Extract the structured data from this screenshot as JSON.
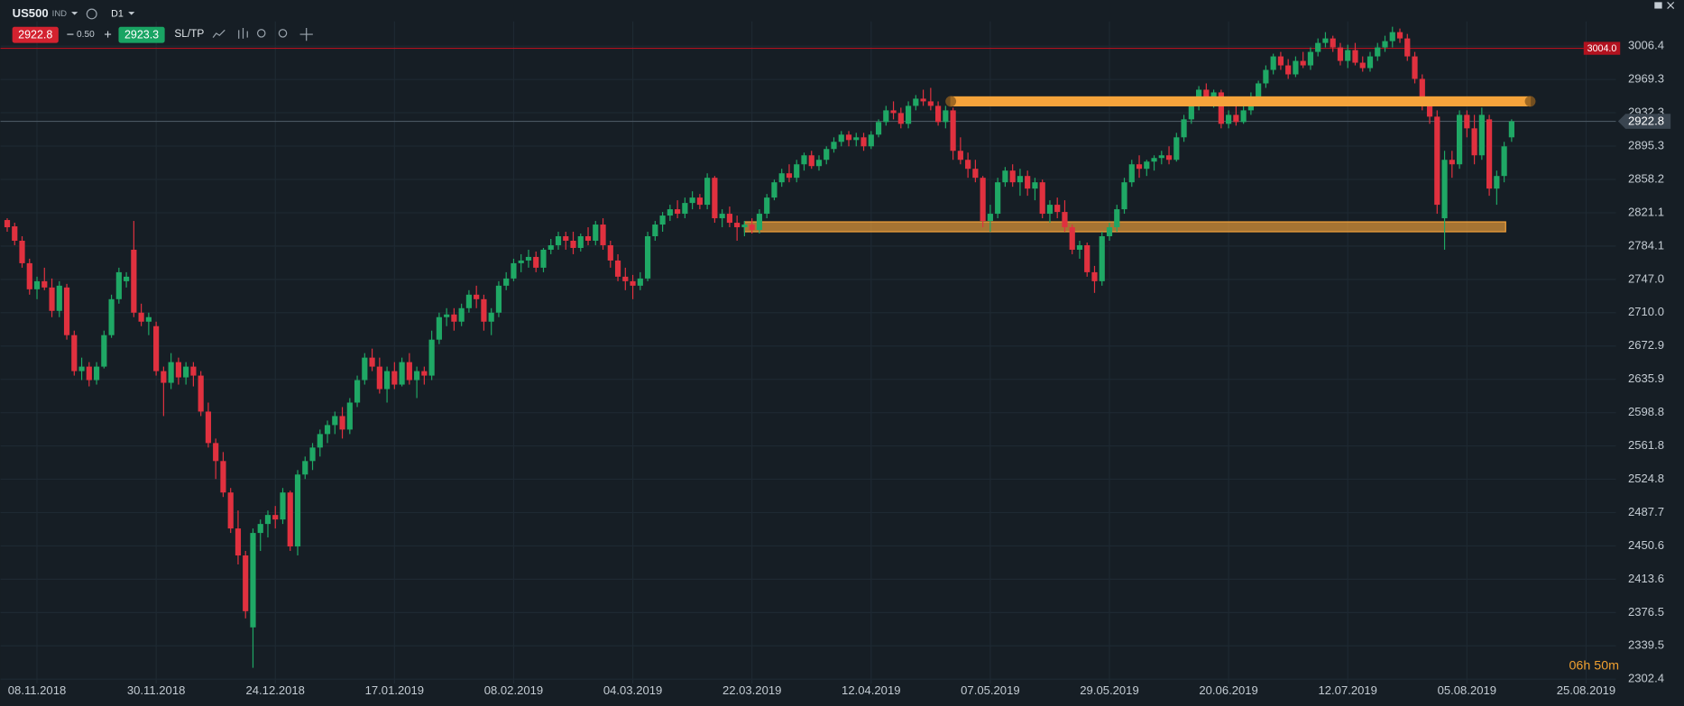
{
  "header": {
    "symbol": "US500",
    "market": "IND",
    "timeframe": "D1",
    "bid": "2922.8",
    "spread": "0.50",
    "ask": "2923.3",
    "sltp": "SL/TP"
  },
  "chart_data": {
    "type": "candlestick",
    "up_color": "#1fa865",
    "down_color": "#e0313f",
    "grid": true,
    "xlim": [
      -0.9,
      216
    ],
    "ylim": [
      2300,
      3010
    ],
    "xticks": [
      {
        "value": 4,
        "label": "08.11.2018"
      },
      {
        "value": 20,
        "label": "30.11.2018"
      },
      {
        "value": 36,
        "label": "24.12.2018"
      },
      {
        "value": 52,
        "label": "17.01.2019"
      },
      {
        "value": 68,
        "label": "08.02.2019"
      },
      {
        "value": 84,
        "label": "04.03.2019"
      },
      {
        "value": 100,
        "label": "22.03.2019"
      },
      {
        "value": 116,
        "label": "12.04.2019"
      },
      {
        "value": 132,
        "label": "07.05.2019"
      },
      {
        "value": 148,
        "label": "29.05.2019"
      },
      {
        "value": 164,
        "label": "20.06.2019"
      },
      {
        "value": 180,
        "label": "12.07.2019"
      },
      {
        "value": 196,
        "label": "05.08.2019"
      },
      {
        "value": 212,
        "label": "25.08.2019"
      }
    ],
    "yticks": [
      3006.4,
      2969.3,
      2932.3,
      2895.3,
      2858.2,
      2821.1,
      2784.1,
      {
        "value": 2747,
        "label": "2747.0"
      },
      {
        "value": 2710,
        "label": "2710.0"
      },
      2672.9,
      2635.9,
      2598.8,
      2561.8,
      2524.8,
      2487.7,
      2450.6,
      2413.6,
      2376.5,
      2339.5,
      2302.4
    ],
    "lines": [
      {
        "value": 3004,
        "label": "3004.0",
        "color": "#b3121f"
      },
      {
        "value": 2922.8,
        "label": "2922.8",
        "color": "#4a5661"
      }
    ],
    "zones": [
      {
        "low": 2940,
        "high": 2950,
        "from": 126.7,
        "to": 204.5,
        "color": "#f5a33b",
        "opacity": 1
      },
      {
        "low": 2800,
        "high": 2811,
        "from": 99,
        "to": 201.2,
        "color": "#f5a33b",
        "opacity": 0.65
      }
    ],
    "timer": "06h 50m",
    "candles": [
      [
        2813,
        2815,
        2800,
        2805
      ],
      [
        2806,
        2810,
        2785,
        2790
      ],
      [
        2790,
        2795,
        2760,
        2765
      ],
      [
        2765,
        2770,
        2730,
        2736
      ],
      [
        2736,
        2750,
        2725,
        2745
      ],
      [
        2745,
        2760,
        2735,
        2738
      ],
      [
        2738,
        2748,
        2705,
        2712
      ],
      [
        2712,
        2745,
        2705,
        2740
      ],
      [
        2738,
        2742,
        2680,
        2685
      ],
      [
        2685,
        2690,
        2640,
        2645
      ],
      [
        2645,
        2660,
        2635,
        2650
      ],
      [
        2650,
        2655,
        2628,
        2635
      ],
      [
        2635,
        2655,
        2630,
        2650
      ],
      [
        2650,
        2690,
        2648,
        2685
      ],
      [
        2685,
        2730,
        2682,
        2725
      ],
      [
        2725,
        2760,
        2720,
        2755
      ],
      [
        2745,
        2755,
        2738,
        2750
      ],
      [
        2780,
        2812,
        2705,
        2710
      ],
      [
        2710,
        2720,
        2695,
        2700
      ],
      [
        2700,
        2710,
        2685,
        2705
      ],
      [
        2695,
        2700,
        2640,
        2645
      ],
      [
        2645,
        2650,
        2595,
        2632
      ],
      [
        2632,
        2665,
        2625,
        2655
      ],
      [
        2655,
        2660,
        2630,
        2638
      ],
      [
        2638,
        2655,
        2630,
        2650
      ],
      [
        2650,
        2655,
        2628,
        2640
      ],
      [
        2640,
        2645,
        2595,
        2600
      ],
      [
        2600,
        2610,
        2560,
        2565
      ],
      [
        2565,
        2570,
        2525,
        2545
      ],
      [
        2545,
        2555,
        2505,
        2510
      ],
      [
        2510,
        2515,
        2465,
        2470
      ],
      [
        2470,
        2490,
        2430,
        2440
      ],
      [
        2440,
        2445,
        2370,
        2378
      ],
      [
        2360,
        2470,
        2315,
        2465
      ],
      [
        2465,
        2480,
        2445,
        2475
      ],
      [
        2475,
        2490,
        2460,
        2485
      ],
      [
        2485,
        2495,
        2470,
        2480
      ],
      [
        2480,
        2515,
        2475,
        2510
      ],
      [
        2510,
        2512,
        2445,
        2450
      ],
      [
        2450,
        2535,
        2440,
        2530
      ],
      [
        2530,
        2550,
        2525,
        2545
      ],
      [
        2545,
        2565,
        2535,
        2560
      ],
      [
        2560,
        2580,
        2550,
        2575
      ],
      [
        2575,
        2590,
        2565,
        2585
      ],
      [
        2585,
        2600,
        2575,
        2595
      ],
      [
        2595,
        2605,
        2570,
        2580
      ],
      [
        2580,
        2615,
        2575,
        2610
      ],
      [
        2610,
        2640,
        2605,
        2635
      ],
      [
        2635,
        2665,
        2630,
        2660
      ],
      [
        2660,
        2670,
        2645,
        2650
      ],
      [
        2650,
        2660,
        2620,
        2625
      ],
      [
        2625,
        2650,
        2610,
        2645
      ],
      [
        2645,
        2655,
        2625,
        2630
      ],
      [
        2630,
        2660,
        2628,
        2655
      ],
      [
        2655,
        2665,
        2630,
        2635
      ],
      [
        2635,
        2650,
        2615,
        2645
      ],
      [
        2645,
        2650,
        2630,
        2640
      ],
      [
        2640,
        2690,
        2635,
        2680
      ],
      [
        2680,
        2710,
        2675,
        2705
      ],
      [
        2705,
        2715,
        2695,
        2708
      ],
      [
        2708,
        2715,
        2690,
        2700
      ],
      [
        2700,
        2720,
        2695,
        2715
      ],
      [
        2715,
        2735,
        2710,
        2730
      ],
      [
        2730,
        2740,
        2715,
        2725
      ],
      [
        2725,
        2730,
        2690,
        2700
      ],
      [
        2700,
        2715,
        2685,
        2710
      ],
      [
        2710,
        2745,
        2705,
        2740
      ],
      [
        2740,
        2755,
        2735,
        2748
      ],
      [
        2748,
        2770,
        2745,
        2765
      ],
      [
        2765,
        2775,
        2755,
        2768
      ],
      [
        2768,
        2780,
        2760,
        2772
      ],
      [
        2772,
        2778,
        2755,
        2760
      ],
      [
        2760,
        2782,
        2755,
        2780
      ],
      [
        2780,
        2792,
        2775,
        2785
      ],
      [
        2785,
        2800,
        2780,
        2795
      ],
      [
        2795,
        2800,
        2780,
        2790
      ],
      [
        2790,
        2800,
        2775,
        2782
      ],
      [
        2782,
        2798,
        2778,
        2795
      ],
      [
        2795,
        2805,
        2785,
        2790
      ],
      [
        2790,
        2812,
        2785,
        2808
      ],
      [
        2808,
        2815,
        2780,
        2785
      ],
      [
        2785,
        2790,
        2760,
        2768
      ],
      [
        2768,
        2775,
        2745,
        2750
      ],
      [
        2750,
        2760,
        2735,
        2745
      ],
      [
        2745,
        2752,
        2725,
        2740
      ],
      [
        2740,
        2755,
        2735,
        2748
      ],
      [
        2748,
        2800,
        2745,
        2795
      ],
      [
        2795,
        2812,
        2790,
        2808
      ],
      [
        2808,
        2822,
        2800,
        2818
      ],
      [
        2818,
        2830,
        2812,
        2825
      ],
      [
        2825,
        2835,
        2815,
        2820
      ],
      [
        2820,
        2838,
        2815,
        2832
      ],
      [
        2832,
        2845,
        2825,
        2838
      ],
      [
        2838,
        2842,
        2825,
        2830
      ],
      [
        2830,
        2865,
        2825,
        2860
      ],
      [
        2860,
        2862,
        2810,
        2815
      ],
      [
        2815,
        2825,
        2805,
        2820
      ],
      [
        2820,
        2828,
        2805,
        2810
      ],
      [
        2810,
        2818,
        2790,
        2805
      ],
      [
        2805,
        2812,
        2795,
        2808
      ],
      [
        2808,
        2815,
        2798,
        2802
      ],
      [
        2802,
        2825,
        2798,
        2820
      ],
      [
        2820,
        2842,
        2815,
        2838
      ],
      [
        2838,
        2858,
        2835,
        2855
      ],
      [
        2855,
        2870,
        2850,
        2865
      ],
      [
        2865,
        2875,
        2855,
        2860
      ],
      [
        2860,
        2880,
        2855,
        2875
      ],
      [
        2875,
        2888,
        2868,
        2885
      ],
      [
        2885,
        2890,
        2870,
        2873
      ],
      [
        2873,
        2885,
        2868,
        2880
      ],
      [
        2880,
        2895,
        2875,
        2892
      ],
      [
        2892,
        2905,
        2888,
        2900
      ],
      [
        2900,
        2912,
        2895,
        2908
      ],
      [
        2908,
        2912,
        2895,
        2902
      ],
      [
        2902,
        2910,
        2895,
        2905
      ],
      [
        2905,
        2910,
        2890,
        2895
      ],
      [
        2895,
        2912,
        2892,
        2908
      ],
      [
        2908,
        2925,
        2905,
        2922
      ],
      [
        2922,
        2940,
        2918,
        2935
      ],
      [
        2935,
        2945,
        2925,
        2932
      ],
      [
        2932,
        2938,
        2915,
        2920
      ],
      [
        2920,
        2945,
        2915,
        2940
      ],
      [
        2940,
        2952,
        2935,
        2948
      ],
      [
        2948,
        2958,
        2940,
        2945
      ],
      [
        2945,
        2960,
        2935,
        2940
      ],
      [
        2940,
        2945,
        2918,
        2922
      ],
      [
        2922,
        2940,
        2915,
        2935
      ],
      [
        2935,
        2938,
        2880,
        2890
      ],
      [
        2890,
        2905,
        2875,
        2880
      ],
      [
        2880,
        2888,
        2860,
        2870
      ],
      [
        2870,
        2880,
        2855,
        2860
      ],
      [
        2860,
        2862,
        2805,
        2812
      ],
      [
        2812,
        2830,
        2800,
        2820
      ],
      [
        2820,
        2860,
        2815,
        2855
      ],
      [
        2855,
        2872,
        2850,
        2868
      ],
      [
        2868,
        2875,
        2850,
        2855
      ],
      [
        2855,
        2870,
        2840,
        2862
      ],
      [
        2862,
        2868,
        2840,
        2848
      ],
      [
        2848,
        2860,
        2835,
        2855
      ],
      [
        2855,
        2858,
        2815,
        2820
      ],
      [
        2820,
        2835,
        2810,
        2830
      ],
      [
        2830,
        2838,
        2815,
        2822
      ],
      [
        2822,
        2835,
        2800,
        2805
      ],
      [
        2805,
        2808,
        2775,
        2780
      ],
      [
        2780,
        2790,
        2770,
        2785
      ],
      [
        2785,
        2788,
        2750,
        2755
      ],
      [
        2755,
        2762,
        2732,
        2745
      ],
      [
        2745,
        2800,
        2740,
        2795
      ],
      [
        2795,
        2810,
        2790,
        2805
      ],
      [
        2805,
        2830,
        2800,
        2825
      ],
      [
        2825,
        2860,
        2820,
        2855
      ],
      [
        2855,
        2880,
        2850,
        2875
      ],
      [
        2875,
        2885,
        2860,
        2870
      ],
      [
        2870,
        2880,
        2862,
        2878
      ],
      [
        2878,
        2885,
        2868,
        2882
      ],
      [
        2882,
        2890,
        2875,
        2885
      ],
      [
        2885,
        2895,
        2875,
        2880
      ],
      [
        2880,
        2910,
        2878,
        2905
      ],
      [
        2905,
        2930,
        2900,
        2925
      ],
      [
        2925,
        2945,
        2920,
        2940
      ],
      [
        2940,
        2962,
        2935,
        2958
      ],
      [
        2958,
        2965,
        2945,
        2950
      ],
      [
        2950,
        2958,
        2938,
        2955
      ],
      [
        2955,
        2958,
        2915,
        2920
      ],
      [
        2920,
        2935,
        2915,
        2930
      ],
      [
        2930,
        2942,
        2918,
        2922
      ],
      [
        2922,
        2940,
        2920,
        2935
      ],
      [
        2935,
        2955,
        2930,
        2950
      ],
      [
        2950,
        2968,
        2945,
        2965
      ],
      [
        2965,
        2985,
        2960,
        2980
      ],
      [
        2980,
        2998,
        2975,
        2995
      ],
      [
        2995,
        3000,
        2980,
        2985
      ],
      [
        2985,
        2992,
        2970,
        2975
      ],
      [
        2975,
        2995,
        2972,
        2990
      ],
      [
        2990,
        3000,
        2982,
        2985
      ],
      [
        2985,
        3005,
        2980,
        3000
      ],
      [
        3000,
        3015,
        2995,
        3010
      ],
      [
        3010,
        3022,
        3005,
        3015
      ],
      [
        3015,
        3018,
        3000,
        3005
      ],
      [
        3005,
        3010,
        2985,
        2990
      ],
      [
        2990,
        3008,
        2982,
        3002
      ],
      [
        3002,
        3010,
        2985,
        2988
      ],
      [
        2988,
        2995,
        2978,
        2982
      ],
      [
        2982,
        3000,
        2978,
        2995
      ],
      [
        2995,
        3010,
        2990,
        3005
      ],
      [
        3005,
        3018,
        3000,
        3012
      ],
      [
        3012,
        3028,
        3005,
        3022
      ],
      [
        3022,
        3026,
        3010,
        3015
      ],
      [
        3015,
        3020,
        2990,
        2995
      ],
      [
        2995,
        3000,
        2965,
        2970
      ],
      [
        2970,
        2975,
        2935,
        2940
      ],
      [
        2940,
        2945,
        2920,
        2928
      ],
      [
        2928,
        2935,
        2820,
        2830
      ],
      [
        2815,
        2890,
        2780,
        2880
      ],
      [
        2880,
        2890,
        2860,
        2875
      ],
      [
        2875,
        2935,
        2870,
        2930
      ],
      [
        2930,
        2935,
        2905,
        2915
      ],
      [
        2915,
        2930,
        2875,
        2885
      ],
      [
        2885,
        2938,
        2880,
        2930
      ],
      [
        2925,
        2930,
        2840,
        2848
      ],
      [
        2848,
        2868,
        2830,
        2862
      ],
      [
        2862,
        2900,
        2855,
        2895
      ],
      [
        2905,
        2925,
        2900,
        2922.8
      ]
    ]
  }
}
